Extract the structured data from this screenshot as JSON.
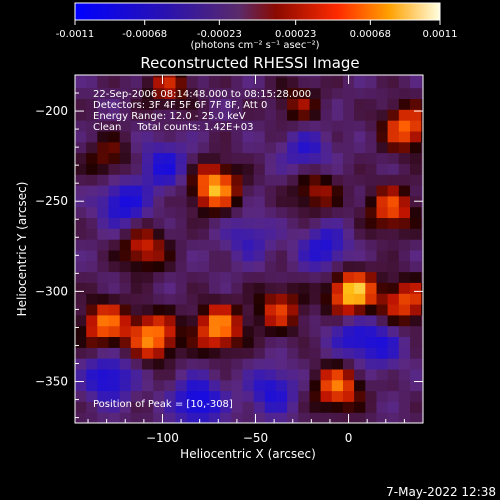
{
  "colorbar": {
    "tick_labels": [
      "-0.0011",
      "-0.00068",
      "-0.00023",
      "0.00023",
      "0.00068",
      "0.0011"
    ],
    "range": [
      -0.0011,
      0.0011
    ],
    "unit_label": "(photons cm⁻² s⁻¹ asec⁻²)"
  },
  "timestamp": "7-May-2022 12:38",
  "chart_data": {
    "type": "heatmap",
    "title": "Reconstructed RHESSI Image",
    "xlabel": "Heliocentric X (arcsec)",
    "ylabel": "Heliocentric Y (arcsec)",
    "xlim": [
      -147,
      40
    ],
    "ylim": [
      -373,
      -180
    ],
    "x_ticks": [
      -100,
      -50,
      0
    ],
    "y_ticks": [
      -200,
      -250,
      -300,
      -350
    ],
    "annotations": [
      "22-Sep-2006 08:14:48.000 to 08:15:28.000",
      "Detectors: 3F 4F 5F 6F 7F 8F, Att 0",
      "Energy Range: 12.0 - 25.0 keV",
      "Clean     Total counts: 1.42E+03"
    ],
    "peak_label": "Position of Peak = [10,-308]",
    "peak_position": [
      10,
      -308
    ],
    "hot_spots": [
      {
        "x": -72,
        "y": -242,
        "value": 0.001
      },
      {
        "x": 2,
        "y": -301,
        "value": 0.0011
      },
      {
        "x": -105,
        "y": -325,
        "value": 0.0009
      },
      {
        "x": 31,
        "y": -209,
        "value": 0.0008
      },
      {
        "x": 23,
        "y": -254,
        "value": 0.0007
      },
      {
        "x": -70,
        "y": -320,
        "value": 0.0009
      },
      {
        "x": -131,
        "y": -318,
        "value": 0.0008
      },
      {
        "x": 31,
        "y": -306,
        "value": 0.0007
      },
      {
        "x": -6,
        "y": -353,
        "value": 0.0008
      },
      {
        "x": -110,
        "y": -276,
        "value": 0.0006
      },
      {
        "x": -97,
        "y": -186,
        "value": 0.0005
      },
      {
        "x": -27,
        "y": -196,
        "value": 0.0004
      },
      {
        "x": -37,
        "y": -310,
        "value": 0.0006
      },
      {
        "x": -129,
        "y": -226,
        "value": 0.0004
      },
      {
        "x": -18,
        "y": -244,
        "value": 0.0005
      }
    ],
    "cold_spots": [
      {
        "x": -99,
        "y": -230,
        "value": -0.0006
      },
      {
        "x": -121,
        "y": -251,
        "value": -0.0007
      },
      {
        "x": -81,
        "y": -361,
        "value": -0.0008
      },
      {
        "x": -129,
        "y": -348,
        "value": -0.0007
      },
      {
        "x": -41,
        "y": -355,
        "value": -0.0006
      },
      {
        "x": 2,
        "y": -324,
        "value": -0.0005
      },
      {
        "x": -13,
        "y": -276,
        "value": -0.0006
      },
      {
        "x": -23,
        "y": -222,
        "value": -0.0005
      },
      {
        "x": 17,
        "y": -330,
        "value": -0.0005
      },
      {
        "x": -54,
        "y": -270,
        "value": -0.0004
      }
    ]
  }
}
